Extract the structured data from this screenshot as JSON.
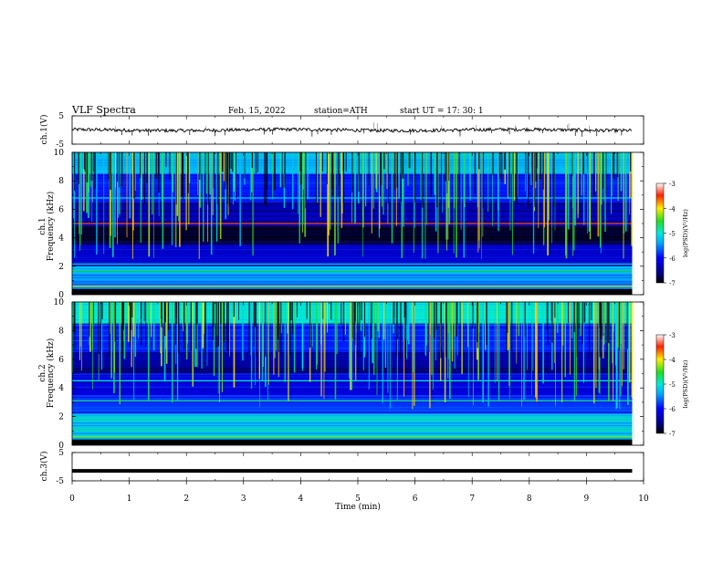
{
  "header": {
    "title": "VLF  Spectra",
    "date": "Feb. 15, 2022",
    "station": "station=ATH",
    "start": "start  UT  =    17: 30: 1"
  },
  "chart_data": [
    {
      "type": "line",
      "name": "ch1-waveform",
      "ylabel": "ch.1(V)",
      "ylim": [
        -5,
        5
      ],
      "ytick_labels": [
        "5",
        "-5"
      ],
      "xlim": [
        0,
        10
      ],
      "series": [
        {
          "x_range": [
            0,
            9.8
          ],
          "typical_level": 0,
          "amplitude": 0.6,
          "spikes_to": -2.5
        }
      ]
    },
    {
      "type": "heatmap",
      "name": "ch1-spectrogram",
      "ylabel": "ch.1\nFrequency  (kHz)",
      "ylim": [
        0,
        10
      ],
      "ytick_labels": [
        "10",
        "8",
        "6",
        "4",
        "2",
        "0"
      ],
      "xlim": [
        0,
        9.8
      ],
      "colorbar": {
        "label": "log(PSD)(V²/Hz)",
        "range": [
          -7,
          -3
        ],
        "tick_labels": [
          "-3",
          "-4",
          "-5",
          "-6",
          "-7"
        ]
      },
      "bands_khz": [
        {
          "from": 10.0,
          "to": 8.5,
          "level": -5.3
        },
        {
          "from": 8.5,
          "to": 6.5,
          "level": -5.9
        },
        {
          "from": 6.5,
          "to": 4.8,
          "level": -6.4
        },
        {
          "from": 4.8,
          "to": 3.5,
          "level": -6.85
        },
        {
          "from": 3.5,
          "to": 2.0,
          "level": -6.3
        },
        {
          "from": 2.0,
          "to": 1.0,
          "level": -5.4
        },
        {
          "from": 1.0,
          "to": 0.0,
          "level": -5.6
        }
      ],
      "lines_khz": [
        {
          "f": 0.6,
          "level": -4.1
        },
        {
          "f": 1.7,
          "level": -4.6
        },
        {
          "f": 2.15,
          "level": -4.9
        },
        {
          "f": 5.0,
          "level": -3.6
        },
        {
          "f": 6.8,
          "level": -5.2
        }
      ]
    },
    {
      "type": "heatmap",
      "name": "ch2-spectrogram",
      "ylabel": "ch.2\nFrequency  (kHz)",
      "ylim": [
        0,
        10
      ],
      "ytick_labels": [
        "10",
        "8",
        "6",
        "4",
        "2",
        "0"
      ],
      "xlim": [
        0,
        9.8
      ],
      "colorbar": {
        "label": "log(PSD)(V²/Hz)",
        "range": [
          -7,
          -3
        ],
        "tick_labels": [
          "-3",
          "-4",
          "-5",
          "-6",
          "-7"
        ]
      },
      "bands_khz": [
        {
          "from": 10.0,
          "to": 8.5,
          "level": -5.0
        },
        {
          "from": 8.5,
          "to": 6.5,
          "level": -5.9
        },
        {
          "from": 6.5,
          "to": 5.0,
          "level": -6.5
        },
        {
          "from": 5.0,
          "to": 3.5,
          "level": -6.2
        },
        {
          "from": 3.5,
          "to": 2.2,
          "level": -5.8
        },
        {
          "from": 2.2,
          "to": 0.0,
          "level": -5.2
        }
      ],
      "lines_khz": [
        {
          "f": 0.6,
          "level": -4.3
        },
        {
          "f": 1.9,
          "level": -4.8
        },
        {
          "f": 3.1,
          "level": -4.7
        },
        {
          "f": 4.5,
          "level": -5.0
        }
      ]
    },
    {
      "type": "line",
      "name": "ch3-waveform",
      "ylabel": "ch.3(V)",
      "ylim": [
        -5,
        5
      ],
      "ytick_labels": [
        "5",
        "-5"
      ],
      "xlim": [
        0,
        10
      ],
      "series": [
        {
          "x_range": [
            0,
            9.8
          ],
          "typical_level": -1.5,
          "amplitude": 0.05
        }
      ]
    }
  ],
  "xaxis": {
    "label": "Time  (min)",
    "ticks": [
      0,
      1,
      2,
      3,
      4,
      5,
      6,
      7,
      8,
      9,
      10
    ],
    "tick_labels": [
      "0",
      "1",
      "2",
      "3",
      "4",
      "5",
      "6",
      "7",
      "8",
      "9",
      "10"
    ]
  }
}
